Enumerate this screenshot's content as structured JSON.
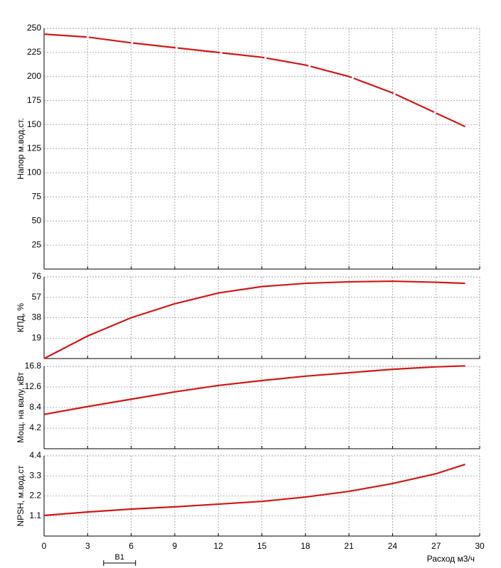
{
  "chart_data": [
    {
      "type": "line",
      "ylabel": "Напор м.вод.ст.",
      "ylim": [
        0,
        250
      ],
      "yticks": [
        25,
        50,
        75,
        100,
        125,
        150,
        175,
        200,
        225,
        250
      ],
      "grid": true,
      "x": [
        0,
        3,
        6,
        9,
        12,
        15,
        18,
        21,
        24,
        27,
        29
      ],
      "color": "#d01818",
      "dashed": true,
      "values": [
        244,
        241,
        235,
        230,
        225,
        220,
        212,
        200,
        183,
        162,
        148
      ]
    },
    {
      "type": "line",
      "ylabel": "КПД, %",
      "ylim": [
        0,
        76
      ],
      "yticks": [
        19,
        38,
        57,
        76
      ],
      "grid": true,
      "x": [
        0,
        3,
        6,
        9,
        12,
        15,
        18,
        21,
        24,
        27,
        29
      ],
      "color": "#d01818",
      "values": [
        0,
        21,
        38,
        51,
        61,
        67,
        70,
        71.4,
        72,
        71,
        70
      ]
    },
    {
      "type": "line",
      "ylabel": "Мощ. на валу, кВт",
      "ylim": [
        0,
        16.8
      ],
      "yticks": [
        4.2,
        8.4,
        12.6,
        16.8
      ],
      "grid": true,
      "x": [
        0,
        3,
        6,
        9,
        12,
        15,
        18,
        21,
        24,
        27,
        29
      ],
      "color": "#d01818",
      "values": [
        7.0,
        8.6,
        10.1,
        11.6,
        12.9,
        13.9,
        14.8,
        15.5,
        16.2,
        16.7,
        16.9
      ]
    },
    {
      "type": "line",
      "ylabel": "NPSH, м.вод.ст",
      "ylim": [
        0,
        4.4
      ],
      "yticks": [
        1.1,
        2.2,
        3.3,
        4.4
      ],
      "grid": true,
      "x": [
        0,
        3,
        6,
        9,
        12,
        15,
        18,
        21,
        24,
        27,
        29
      ],
      "color": "#d01818",
      "values": [
        1.13,
        1.32,
        1.48,
        1.6,
        1.75,
        1.9,
        2.14,
        2.45,
        2.88,
        3.42,
        3.93
      ],
      "xlabel": "Расход м3/ч",
      "xlim": [
        0,
        30
      ],
      "xticks": [
        0,
        3,
        6,
        9,
        12,
        15,
        18,
        21,
        24,
        27,
        30
      ],
      "range_marker": {
        "label": "B1",
        "x": [
          4.1,
          6.3
        ]
      }
    }
  ]
}
